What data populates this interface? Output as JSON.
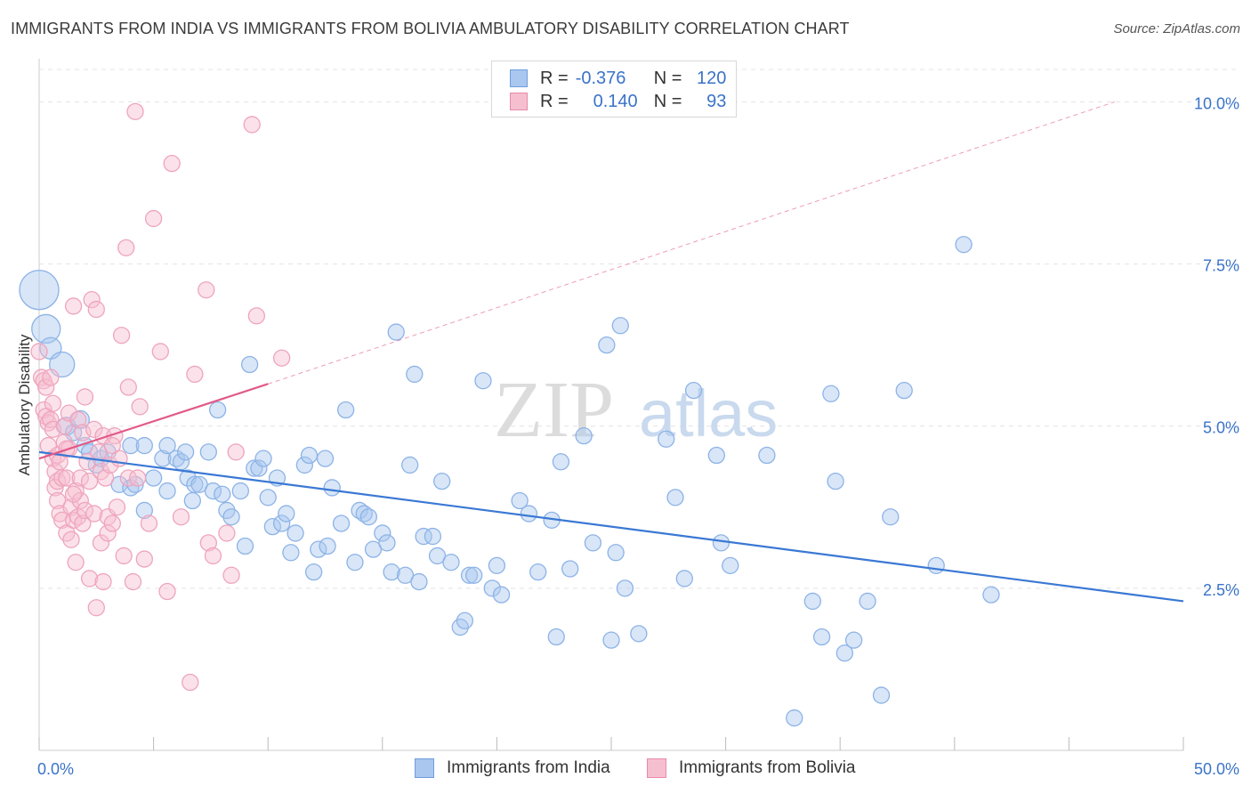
{
  "title": "IMMIGRANTS FROM INDIA VS IMMIGRANTS FROM BOLIVIA AMBULATORY DISABILITY CORRELATION CHART",
  "source": "Source: ZipAtlas.com",
  "watermark": {
    "zip": "ZIP",
    "atlas": "atlas"
  },
  "legend": {
    "rows": [
      {
        "r_label": "R =",
        "r_value": "-0.376",
        "n_label": "N =",
        "n_value": "120",
        "color": "#a9c7ef",
        "border": "#6f9ddb"
      },
      {
        "r_label": "R =",
        "r_value": "0.140",
        "n_label": "N =",
        "n_value": "93",
        "color": "#f6bfd0",
        "border": "#e88aa8"
      }
    ]
  },
  "chart_data": {
    "type": "scatter",
    "ylabel": "Ambulatory Disability",
    "xlim": [
      0,
      50
    ],
    "ylim": [
      0,
      10.5
    ],
    "x_tick_labels": [
      "0.0%",
      "50.0%"
    ],
    "y_ticks": [
      2.5,
      5.0,
      7.5,
      10.0
    ],
    "y_tick_labels": [
      "2.5%",
      "5.0%",
      "7.5%",
      "10.0%"
    ],
    "grid": true,
    "series": [
      {
        "name": "Immigrants from India",
        "color": "#3a78d4",
        "fill": "#a9c7ef",
        "trend": {
          "x": [
            0,
            50
          ],
          "y": [
            4.6,
            2.3
          ],
          "dashed_extension": null
        },
        "points": [
          [
            0.0,
            7.1,
            22
          ],
          [
            0.3,
            6.5,
            16
          ],
          [
            0.5,
            6.2,
            12
          ],
          [
            1.0,
            5.95,
            14
          ],
          [
            1.2,
            5.0,
            10
          ],
          [
            1.8,
            5.1,
            10
          ],
          [
            1.5,
            4.9,
            9
          ],
          [
            2.0,
            4.7,
            9
          ],
          [
            2.2,
            4.6,
            9
          ],
          [
            2.5,
            4.4,
            9
          ],
          [
            2.7,
            4.5,
            9
          ],
          [
            3.0,
            4.6,
            9
          ],
          [
            3.5,
            4.1,
            9
          ],
          [
            4.0,
            4.05,
            9
          ],
          [
            4.2,
            4.1,
            9
          ],
          [
            4.0,
            4.7,
            9
          ],
          [
            4.6,
            4.7,
            9
          ],
          [
            4.6,
            3.7,
            9
          ],
          [
            5.0,
            4.2,
            9
          ],
          [
            5.4,
            4.5,
            9
          ],
          [
            5.6,
            4.7,
            9
          ],
          [
            5.6,
            4.0,
            9
          ],
          [
            6.0,
            4.5,
            9
          ],
          [
            6.2,
            4.45,
            9
          ],
          [
            6.4,
            4.6,
            9
          ],
          [
            6.5,
            4.2,
            9
          ],
          [
            6.7,
            3.85,
            9
          ],
          [
            6.8,
            4.1,
            9
          ],
          [
            7.0,
            4.1,
            9
          ],
          [
            7.4,
            4.6,
            9
          ],
          [
            7.6,
            4.0,
            9
          ],
          [
            7.8,
            5.25,
            9
          ],
          [
            8.0,
            3.95,
            9
          ],
          [
            8.2,
            3.7,
            9
          ],
          [
            8.4,
            3.6,
            9
          ],
          [
            8.8,
            4.0,
            9
          ],
          [
            9.0,
            3.15,
            9
          ],
          [
            9.2,
            5.95,
            9
          ],
          [
            9.4,
            4.35,
            9
          ],
          [
            9.6,
            4.35,
            9
          ],
          [
            9.8,
            4.5,
            9
          ],
          [
            10.0,
            3.9,
            9
          ],
          [
            10.2,
            3.45,
            9
          ],
          [
            10.4,
            4.2,
            9
          ],
          [
            10.6,
            3.5,
            9
          ],
          [
            10.8,
            3.65,
            9
          ],
          [
            11.0,
            3.05,
            9
          ],
          [
            11.2,
            3.35,
            9
          ],
          [
            11.6,
            4.4,
            9
          ],
          [
            11.8,
            4.55,
            9
          ],
          [
            12.0,
            2.75,
            9
          ],
          [
            12.2,
            3.1,
            9
          ],
          [
            12.5,
            4.5,
            9
          ],
          [
            12.6,
            3.15,
            9
          ],
          [
            12.8,
            4.05,
            9
          ],
          [
            13.2,
            3.5,
            9
          ],
          [
            13.4,
            5.25,
            9
          ],
          [
            13.8,
            2.9,
            9
          ],
          [
            14.0,
            3.7,
            9
          ],
          [
            14.2,
            3.65,
            9
          ],
          [
            14.4,
            3.6,
            9
          ],
          [
            14.6,
            3.1,
            9
          ],
          [
            15.0,
            3.35,
            9
          ],
          [
            15.2,
            3.2,
            9
          ],
          [
            15.4,
            2.75,
            9
          ],
          [
            15.6,
            6.45,
            9
          ],
          [
            16.0,
            2.7,
            9
          ],
          [
            16.2,
            4.4,
            9
          ],
          [
            16.4,
            5.8,
            9
          ],
          [
            16.6,
            2.6,
            9
          ],
          [
            16.8,
            3.3,
            9
          ],
          [
            17.2,
            3.3,
            9
          ],
          [
            17.4,
            3.0,
            9
          ],
          [
            17.6,
            4.15,
            9
          ],
          [
            18.0,
            2.9,
            9
          ],
          [
            18.4,
            1.9,
            9
          ],
          [
            18.6,
            2.0,
            9
          ],
          [
            18.8,
            2.7,
            9
          ],
          [
            19.0,
            2.7,
            9
          ],
          [
            19.4,
            5.7,
            9
          ],
          [
            19.8,
            2.5,
            9
          ],
          [
            20.0,
            2.85,
            9
          ],
          [
            20.2,
            2.4,
            9
          ],
          [
            21.0,
            3.85,
            9
          ],
          [
            21.4,
            3.65,
            9
          ],
          [
            21.8,
            2.75,
            9
          ],
          [
            22.4,
            3.55,
            9
          ],
          [
            22.6,
            1.75,
            9
          ],
          [
            22.8,
            4.45,
            9
          ],
          [
            23.2,
            2.8,
            9
          ],
          [
            23.8,
            4.85,
            9
          ],
          [
            24.2,
            3.2,
            9
          ],
          [
            24.8,
            6.25,
            9
          ],
          [
            25.0,
            1.7,
            9
          ],
          [
            25.2,
            3.05,
            9
          ],
          [
            25.4,
            6.55,
            9
          ],
          [
            25.6,
            2.5,
            9
          ],
          [
            26.2,
            1.8,
            9
          ],
          [
            27.4,
            4.8,
            9
          ],
          [
            27.8,
            3.9,
            9
          ],
          [
            28.2,
            2.65,
            9
          ],
          [
            28.6,
            5.55,
            9
          ],
          [
            29.6,
            4.55,
            9
          ],
          [
            29.8,
            3.2,
            9
          ],
          [
            30.2,
            2.85,
            9
          ],
          [
            31.8,
            4.55,
            9
          ],
          [
            33.0,
            0.5,
            9
          ],
          [
            33.8,
            2.3,
            9
          ],
          [
            34.2,
            1.75,
            9
          ],
          [
            34.6,
            5.5,
            9
          ],
          [
            34.8,
            4.15,
            9
          ],
          [
            35.2,
            1.5,
            9
          ],
          [
            35.6,
            1.7,
            9
          ],
          [
            36.2,
            2.3,
            9
          ],
          [
            36.8,
            0.85,
            9
          ],
          [
            37.2,
            3.6,
            9
          ],
          [
            37.8,
            5.55,
            9
          ],
          [
            39.2,
            2.85,
            9
          ],
          [
            40.4,
            7.8,
            9
          ],
          [
            41.6,
            2.4,
            9
          ]
        ]
      },
      {
        "name": "Immigrants from Bolivia",
        "color": "#e15a88",
        "fill": "#f6bfd0",
        "trend": {
          "x": [
            0,
            10
          ],
          "y": [
            4.5,
            5.65
          ],
          "dashed_extension": {
            "x": [
              10,
              47
            ],
            "y": [
              5.65,
              10.0
            ]
          }
        },
        "points": [
          [
            0.0,
            6.15,
            9
          ],
          [
            0.1,
            5.75,
            9
          ],
          [
            0.2,
            5.7,
            9
          ],
          [
            0.2,
            5.25,
            9
          ],
          [
            0.3,
            5.6,
            9
          ],
          [
            0.3,
            5.15,
            9
          ],
          [
            0.4,
            5.05,
            9
          ],
          [
            0.4,
            4.7,
            9
          ],
          [
            0.5,
            5.75,
            9
          ],
          [
            0.5,
            5.1,
            9
          ],
          [
            0.6,
            4.95,
            9
          ],
          [
            0.6,
            4.5,
            9
          ],
          [
            0.7,
            4.3,
            9
          ],
          [
            0.7,
            4.05,
            9
          ],
          [
            0.8,
            4.55,
            9
          ],
          [
            0.8,
            4.15,
            9
          ],
          [
            0.8,
            3.85,
            9
          ],
          [
            0.9,
            3.65,
            9
          ],
          [
            1.0,
            4.2,
            9
          ],
          [
            1.0,
            3.55,
            9
          ],
          [
            1.1,
            5.0,
            9
          ],
          [
            1.1,
            4.75,
            9
          ],
          [
            1.2,
            4.2,
            9
          ],
          [
            1.2,
            3.35,
            9
          ],
          [
            1.3,
            5.2,
            9
          ],
          [
            1.3,
            4.65,
            9
          ],
          [
            1.4,
            3.75,
            9
          ],
          [
            1.4,
            3.25,
            9
          ],
          [
            1.5,
            6.85,
            9
          ],
          [
            1.5,
            3.55,
            9
          ],
          [
            1.6,
            4.0,
            9
          ],
          [
            1.6,
            2.9,
            9
          ],
          [
            1.7,
            5.1,
            9
          ],
          [
            1.7,
            3.6,
            9
          ],
          [
            1.8,
            4.2,
            9
          ],
          [
            1.8,
            3.85,
            9
          ],
          [
            1.9,
            4.9,
            9
          ],
          [
            1.9,
            3.5,
            9
          ],
          [
            2.0,
            5.45,
            9
          ],
          [
            2.0,
            3.7,
            9
          ],
          [
            2.1,
            4.45,
            9
          ],
          [
            2.2,
            2.65,
            9
          ],
          [
            2.3,
            6.95,
            9
          ],
          [
            2.4,
            4.95,
            9
          ],
          [
            2.4,
            3.65,
            9
          ],
          [
            2.5,
            6.8,
            9
          ],
          [
            2.5,
            2.2,
            9
          ],
          [
            2.6,
            4.6,
            9
          ],
          [
            2.7,
            4.3,
            9
          ],
          [
            2.7,
            3.2,
            9
          ],
          [
            2.8,
            4.85,
            9
          ],
          [
            2.8,
            2.6,
            9
          ],
          [
            2.9,
            4.2,
            9
          ],
          [
            3.0,
            3.6,
            9
          ],
          [
            3.0,
            3.35,
            9
          ],
          [
            3.1,
            4.4,
            9
          ],
          [
            3.2,
            3.5,
            9
          ],
          [
            3.3,
            4.85,
            9
          ],
          [
            3.4,
            3.75,
            9
          ],
          [
            3.5,
            4.5,
            9
          ],
          [
            3.6,
            6.4,
            9
          ],
          [
            3.7,
            3.0,
            9
          ],
          [
            3.8,
            7.75,
            9
          ],
          [
            3.9,
            5.6,
            9
          ],
          [
            3.9,
            4.2,
            9
          ],
          [
            4.1,
            2.6,
            9
          ],
          [
            4.2,
            9.85,
            9
          ],
          [
            4.3,
            4.2,
            9
          ],
          [
            4.4,
            5.3,
            9
          ],
          [
            4.6,
            2.95,
            9
          ],
          [
            4.8,
            3.5,
            9
          ],
          [
            5.0,
            8.2,
            9
          ],
          [
            5.3,
            6.15,
            9
          ],
          [
            5.6,
            2.45,
            9
          ],
          [
            5.8,
            9.05,
            9
          ],
          [
            6.2,
            3.6,
            9
          ],
          [
            6.6,
            1.05,
            9
          ],
          [
            6.8,
            5.8,
            9
          ],
          [
            7.3,
            7.1,
            9
          ],
          [
            7.4,
            3.2,
            9
          ],
          [
            7.6,
            3.0,
            9
          ],
          [
            8.2,
            3.35,
            9
          ],
          [
            8.4,
            2.7,
            9
          ],
          [
            8.6,
            4.6,
            9
          ],
          [
            9.3,
            9.65,
            9
          ],
          [
            9.5,
            6.7,
            9
          ],
          [
            10.6,
            6.05,
            9
          ],
          [
            0.9,
            4.45,
            9
          ],
          [
            1.2,
            4.65,
            9
          ],
          [
            0.6,
            5.35,
            9
          ],
          [
            2.2,
            4.15,
            9
          ],
          [
            3.2,
            4.7,
            9
          ],
          [
            1.5,
            3.95,
            9
          ]
        ]
      }
    ]
  }
}
